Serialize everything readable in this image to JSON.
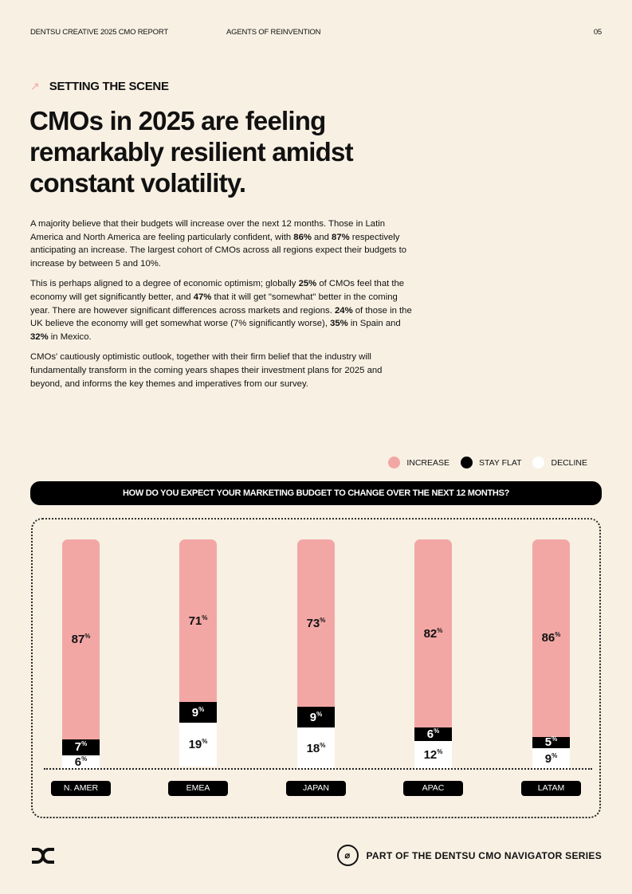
{
  "header": {
    "report": "DENTSU CREATIVE 2025 CMO REPORT",
    "section": "AGENTS OF REINVENTION",
    "page": "05"
  },
  "kicker": "SETTING THE SCENE",
  "headline": "CMOs in 2025 are feeling remarkably resilient amidst constant volatility.",
  "paragraphs": [
    [
      {
        "t": "A majority believe that their budgets will increase over the next 12 months. Those in Latin America and North America are feeling particularly confident, with "
      },
      {
        "t": "86%",
        "b": true
      },
      {
        "t": " and "
      },
      {
        "t": "87%",
        "b": true
      },
      {
        "t": " respectively anticipating an increase. The largest cohort of CMOs across all regions expect their budgets to increase by between 5 and 10%."
      }
    ],
    [
      {
        "t": "This is perhaps aligned to a degree of economic optimism; globally "
      },
      {
        "t": "25%",
        "b": true
      },
      {
        "t": " of CMOs feel that the economy will get significantly better, and "
      },
      {
        "t": "47%",
        "b": true
      },
      {
        "t": " that it will get \"somewhat\" better in the coming year. There are however significant differences across markets and regions. "
      },
      {
        "t": "24%",
        "b": true
      },
      {
        "t": " of those in the UK believe the economy will get somewhat worse (7% significantly worse), "
      },
      {
        "t": "35%",
        "b": true
      },
      {
        "t": " in Spain and "
      },
      {
        "t": "32%",
        "b": true
      },
      {
        "t": " in Mexico."
      }
    ],
    [
      {
        "t": "CMOs' cautiously optimistic outlook, together with their firm belief that the industry will fundamentally transform in the coming years shapes their investment plans for 2025 and beyond, and informs the key themes and imperatives from our survey."
      }
    ]
  ],
  "footer": {
    "series": "PART OF THE DENTSU CMO NAVIGATOR SERIES"
  },
  "chart_data": {
    "type": "bar",
    "stacked": true,
    "title": "HOW DO YOU EXPECT YOUR MARKETING BUDGET TO CHANGE OVER THE NEXT 12 MONTHS?",
    "categories": [
      "N. AMER",
      "EMEA",
      "JAPAN",
      "APAC",
      "LATAM"
    ],
    "unit": "%",
    "legend_placement": "top-right",
    "series": [
      {
        "name": "INCREASE",
        "color": "#f2a7a5",
        "values": [
          87,
          71,
          73,
          82,
          86
        ]
      },
      {
        "name": "STAY FLAT",
        "color": "#000000",
        "values": [
          7,
          9,
          9,
          6,
          5
        ]
      },
      {
        "name": "DECLINE",
        "color": "#ffffff",
        "values": [
          6,
          19,
          18,
          12,
          9
        ]
      }
    ]
  }
}
